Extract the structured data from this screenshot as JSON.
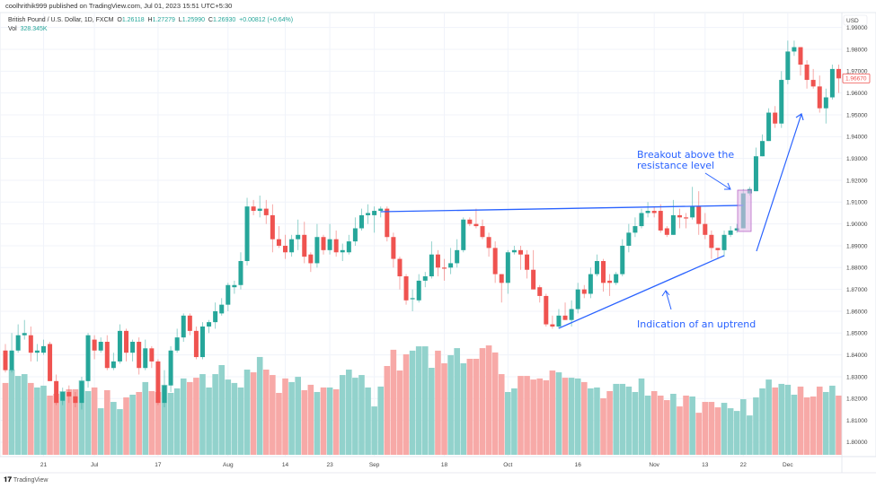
{
  "published": "coolhrithik999 published on TradingView.com, Jul 01, 2023 15:51 UTC+5:30",
  "legend": {
    "symbol": "British Pound / U.S. Dollar, 1D, FXCM",
    "o_label": "O",
    "o": "1.26118",
    "h_label": "H",
    "h": "1.27279",
    "l_label": "L",
    "l": "1.25990",
    "c_label": "C",
    "c": "1.26930",
    "change": "+0.00812 (+0.64%)",
    "vol_label": "Vol",
    "vol": "328.345K"
  },
  "brand": "TradingView",
  "colors": {
    "up": "#26a69a",
    "down": "#ef5350",
    "up_vol": "#92d2cc",
    "down_vol": "#f7a9a7",
    "annotation": "#2962ff",
    "highlight": "#e1bee7"
  },
  "chart_data": {
    "type": "candlestick",
    "currency_label": "USD",
    "last_price": "1.96670",
    "ylim": [
      1.795,
      1.995
    ],
    "grid": true,
    "yticks": [
      "1.80000",
      "1.81000",
      "1.82000",
      "1.83000",
      "1.84000",
      "1.85000",
      "1.86000",
      "1.87000",
      "1.88000",
      "1.89000",
      "1.90000",
      "1.91000",
      "1.92000",
      "1.93000",
      "1.94000",
      "1.95000",
      "1.96000",
      "1.97000",
      "1.98000",
      "1.99000"
    ],
    "xticks": [
      {
        "label": "21",
        "bar": 6
      },
      {
        "label": "Jul",
        "bar": 14
      },
      {
        "label": "17",
        "bar": 24
      },
      {
        "label": "Aug",
        "bar": 35
      },
      {
        "label": "14",
        "bar": 44
      },
      {
        "label": "23",
        "bar": 51
      },
      {
        "label": "Sep",
        "bar": 58
      },
      {
        "label": "18",
        "bar": 69
      },
      {
        "label": "Oct",
        "bar": 79
      },
      {
        "label": "16",
        "bar": 90
      },
      {
        "label": "Nov",
        "bar": 102
      },
      {
        "label": "13",
        "bar": 110
      },
      {
        "label": "22",
        "bar": 116
      },
      {
        "label": "Dec",
        "bar": 123
      }
    ],
    "ohlc": [
      [
        1.842,
        1.845,
        1.832,
        1.833
      ],
      [
        1.833,
        1.85,
        1.832,
        1.842
      ],
      [
        1.842,
        1.854,
        1.841,
        1.849
      ],
      [
        1.849,
        1.856,
        1.847,
        1.85
      ],
      [
        1.849,
        1.853,
        1.837,
        1.841
      ],
      [
        1.841,
        1.845,
        1.837,
        1.842
      ],
      [
        1.841,
        1.847,
        1.84,
        1.844
      ],
      [
        1.845,
        1.846,
        1.828,
        1.828
      ],
      [
        1.828,
        1.831,
        1.817,
        1.818
      ],
      [
        1.819,
        1.825,
        1.817,
        1.823
      ],
      [
        1.823,
        1.826,
        1.818,
        1.821
      ],
      [
        1.821,
        1.823,
        1.816,
        1.818
      ],
      [
        1.818,
        1.83,
        1.815,
        1.828
      ],
      [
        1.828,
        1.85,
        1.825,
        1.849
      ],
      [
        1.847,
        1.849,
        1.838,
        1.842
      ],
      [
        1.842,
        1.848,
        1.841,
        1.846
      ],
      [
        1.846,
        1.849,
        1.833,
        1.834
      ],
      [
        1.834,
        1.841,
        1.833,
        1.837
      ],
      [
        1.837,
        1.854,
        1.836,
        1.851
      ],
      [
        1.851,
        1.852,
        1.837,
        1.841
      ],
      [
        1.841,
        1.847,
        1.837,
        1.846
      ],
      [
        1.846,
        1.848,
        1.831,
        1.834
      ],
      [
        1.834,
        1.847,
        1.833,
        1.843
      ],
      [
        1.843,
        1.844,
        1.834,
        1.837
      ],
      [
        1.837,
        1.838,
        1.817,
        1.818
      ],
      [
        1.818,
        1.833,
        1.816,
        1.826
      ],
      [
        1.826,
        1.844,
        1.823,
        1.842
      ],
      [
        1.842,
        1.852,
        1.841,
        1.848
      ],
      [
        1.848,
        1.859,
        1.846,
        1.858
      ],
      [
        1.858,
        1.859,
        1.849,
        1.851
      ],
      [
        1.851,
        1.853,
        1.838,
        1.839
      ],
      [
        1.839,
        1.855,
        1.838,
        1.853
      ],
      [
        1.853,
        1.856,
        1.85,
        1.855
      ],
      [
        1.855,
        1.864,
        1.852,
        1.86
      ],
      [
        1.859,
        1.866,
        1.858,
        1.863
      ],
      [
        1.863,
        1.873,
        1.86,
        1.872
      ],
      [
        1.871,
        1.874,
        1.868,
        1.872
      ],
      [
        1.872,
        1.887,
        1.87,
        1.883
      ],
      [
        1.883,
        1.912,
        1.881,
        1.908
      ],
      [
        1.908,
        1.911,
        1.904,
        1.906
      ],
      [
        1.906,
        1.913,
        1.903,
        1.907
      ],
      [
        1.907,
        1.911,
        1.9,
        1.904
      ],
      [
        1.904,
        1.909,
        1.887,
        1.893
      ],
      [
        1.893,
        1.899,
        1.889,
        1.89
      ],
      [
        1.89,
        1.895,
        1.884,
        1.887
      ],
      [
        1.887,
        1.895,
        1.885,
        1.893
      ],
      [
        1.893,
        1.902,
        1.888,
        1.895
      ],
      [
        1.895,
        1.901,
        1.882,
        1.885
      ],
      [
        1.886,
        1.887,
        1.878,
        1.882
      ],
      [
        1.882,
        1.9,
        1.88,
        1.894
      ],
      [
        1.894,
        1.895,
        1.886,
        1.888
      ],
      [
        1.888,
        1.9,
        1.886,
        1.893
      ],
      [
        1.893,
        1.897,
        1.885,
        1.887
      ],
      [
        1.887,
        1.891,
        1.883,
        1.888
      ],
      [
        1.887,
        1.895,
        1.886,
        1.892
      ],
      [
        1.892,
        1.903,
        1.89,
        1.898
      ],
      [
        1.898,
        1.907,
        1.897,
        1.904
      ],
      [
        1.904,
        1.909,
        1.9,
        1.905
      ],
      [
        1.904,
        1.908,
        1.896,
        1.906
      ],
      [
        1.906,
        1.908,
        1.903,
        1.907
      ],
      [
        1.907,
        1.908,
        1.892,
        1.894
      ],
      [
        1.894,
        1.896,
        1.88,
        1.884
      ],
      [
        1.884,
        1.885,
        1.87,
        1.876
      ],
      [
        1.876,
        1.877,
        1.863,
        1.865
      ],
      [
        1.866,
        1.87,
        1.86,
        1.866
      ],
      [
        1.865,
        1.877,
        1.864,
        1.874
      ],
      [
        1.874,
        1.878,
        1.871,
        1.876
      ],
      [
        1.876,
        1.892,
        1.875,
        1.886
      ],
      [
        1.886,
        1.888,
        1.876,
        1.88
      ],
      [
        1.88,
        1.884,
        1.874,
        1.8798
      ],
      [
        1.88,
        1.889,
        1.877,
        1.882
      ],
      [
        1.882,
        1.893,
        1.88,
        1.888
      ],
      [
        1.888,
        1.903,
        1.887,
        1.902
      ],
      [
        1.902,
        1.903,
        1.899,
        1.9
      ],
      [
        1.9,
        1.907,
        1.898,
        1.899
      ],
      [
        1.899,
        1.902,
        1.893,
        1.894
      ],
      [
        1.894,
        1.896,
        1.885,
        1.889
      ],
      [
        1.889,
        1.892,
        1.873,
        1.877
      ],
      [
        1.877,
        1.877,
        1.864,
        1.873
      ],
      [
        1.873,
        1.888,
        1.868,
        1.887
      ],
      [
        1.887,
        1.89,
        1.886,
        1.888
      ],
      [
        1.888,
        1.89,
        1.879,
        1.886
      ],
      [
        1.886,
        1.888,
        1.875,
        1.879
      ],
      [
        1.879,
        1.888,
        1.87,
        1.87
      ],
      [
        1.871,
        1.872,
        1.864,
        1.867
      ],
      [
        1.867,
        1.868,
        1.853,
        1.854
      ],
      [
        1.854,
        1.858,
        1.852,
        1.853
      ],
      [
        1.853,
        1.861,
        1.852,
        1.858
      ],
      [
        1.858,
        1.864,
        1.856,
        1.856
      ],
      [
        1.856,
        1.865,
        1.853,
        1.861
      ],
      [
        1.861,
        1.873,
        1.859,
        1.87
      ],
      [
        1.87,
        1.872,
        1.866,
        1.868
      ],
      [
        1.868,
        1.88,
        1.866,
        1.877
      ],
      [
        1.877,
        1.886,
        1.876,
        1.883
      ],
      [
        1.883,
        1.884,
        1.869,
        1.873
      ],
      [
        1.874,
        1.877,
        1.867,
        1.873
      ],
      [
        1.873,
        1.878,
        1.872,
        1.877
      ],
      [
        1.877,
        1.893,
        1.876,
        1.89
      ],
      [
        1.89,
        1.9,
        1.887,
        1.896
      ],
      [
        1.896,
        1.903,
        1.894,
        1.899
      ],
      [
        1.899,
        1.907,
        1.898,
        1.905
      ],
      [
        1.905,
        1.91,
        1.903,
        1.906
      ],
      [
        1.906,
        1.908,
        1.903,
        1.905
      ],
      [
        1.906,
        1.909,
        1.896,
        1.897
      ],
      [
        1.898,
        1.899,
        1.894,
        1.895
      ],
      [
        1.895,
        1.911,
        1.895,
        1.904
      ],
      [
        1.904,
        1.907,
        1.898,
        1.903
      ],
      [
        1.903,
        1.905,
        1.898,
        1.9028
      ],
      [
        1.903,
        1.917,
        1.902,
        1.908
      ],
      [
        1.908,
        1.915,
        1.895,
        1.9
      ],
      [
        1.9,
        1.905,
        1.893,
        1.895
      ],
      [
        1.895,
        1.897,
        1.884,
        1.889
      ],
      [
        1.889,
        1.889,
        1.884,
        1.888
      ],
      [
        1.888,
        1.897,
        1.885,
        1.895
      ],
      [
        1.895,
        1.899,
        1.894,
        1.897
      ],
      [
        1.897,
        1.9,
        1.896,
        1.898
      ],
      [
        1.898,
        1.916,
        1.898,
        1.914
      ],
      [
        1.914,
        1.917,
        1.913,
        1.916
      ],
      [
        1.915,
        1.935,
        1.915,
        1.931
      ],
      [
        1.931,
        1.941,
        1.931,
        1.938
      ],
      [
        1.938,
        1.953,
        1.938,
        1.951
      ],
      [
        1.951,
        1.954,
        1.944,
        1.946
      ],
      [
        1.946,
        1.97,
        1.944,
        1.966
      ],
      [
        1.966,
        1.984,
        1.964,
        1.979
      ],
      [
        1.979,
        1.984,
        1.977,
        1.981
      ],
      [
        1.981,
        1.981,
        1.968,
        1.973
      ],
      [
        1.973,
        1.975,
        1.962,
        1.966
      ],
      [
        1.966,
        1.971,
        1.962,
        1.963
      ],
      [
        1.963,
        1.968,
        1.951,
        1.953
      ],
      [
        1.953,
        1.962,
        1.946,
        1.958
      ],
      [
        1.958,
        1.973,
        1.957,
        1.971
      ],
      [
        1.971,
        1.973,
        1.96,
        1.9667
      ]
    ],
    "volume_k": [
      398,
      472,
      437,
      447,
      398,
      373,
      383,
      328,
      338,
      353,
      363,
      363,
      413,
      353,
      373,
      258,
      358,
      293,
      253,
      318,
      333,
      348,
      403,
      353,
      348,
      388,
      343,
      368,
      423,
      403,
      427,
      447,
      373,
      447,
      497,
      417,
      398,
      373,
      472,
      457,
      542,
      472,
      442,
      343,
      423,
      403,
      432,
      358,
      388,
      348,
      373,
      373,
      363,
      442,
      472,
      427,
      442,
      373,
      268,
      378,
      492,
      582,
      467,
      557,
      577,
      601,
      601,
      482,
      577,
      507,
      552,
      591,
      507,
      532,
      532,
      591,
      606,
      567,
      447,
      348,
      368,
      437,
      437,
      417,
      423,
      413,
      467,
      457,
      427,
      427,
      423,
      403,
      368,
      373,
      313,
      353,
      393,
      393,
      378,
      348,
      423,
      328,
      353,
      328,
      303,
      338,
      268,
      328,
      323,
      233,
      293,
      293,
      263,
      288,
      258,
      243,
      308,
      218,
      318,
      368,
      417,
      373,
      393,
      388,
      333,
      378,
      318,
      323,
      378,
      348,
      383,
      328
    ],
    "annotations": {
      "resistance_line": {
        "from": {
          "bar": 59,
          "price": 1.9056
        },
        "to": {
          "bar": 116,
          "price": 1.9085
        }
      },
      "uptrend_line": {
        "from": {
          "bar": 87,
          "price": 1.8522
        },
        "to": {
          "bar": 113,
          "price": 1.8855
        }
      },
      "breakout_text": [
        "Breakout above the",
        "resistance level"
      ],
      "uptrend_text": "Indication of an uptrend"
    }
  }
}
